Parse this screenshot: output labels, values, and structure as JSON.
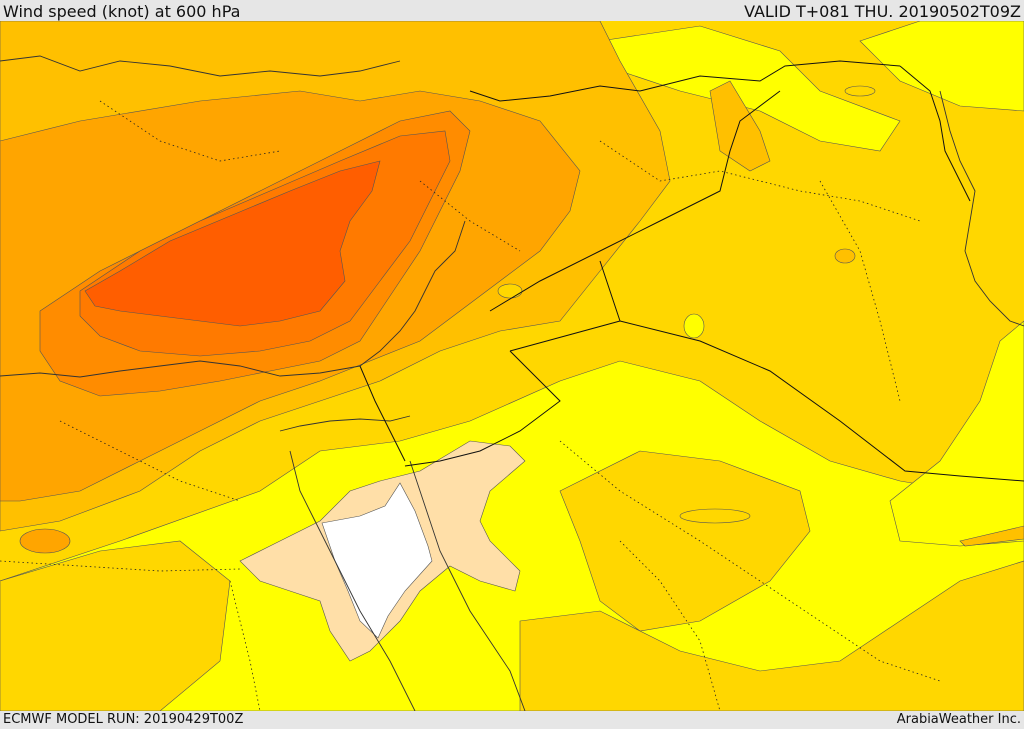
{
  "header": {
    "title": "Wind speed (knot) at 600 hPa",
    "valid": "VALID T+081 THU. 20190502T09Z"
  },
  "footer": {
    "model_run": "ECMWF MODEL RUN: 20190429T00Z",
    "credit": "ArabiaWeather Inc."
  },
  "map": {
    "field": "wind-speed-600hPa",
    "colors": {
      "white": "#ffffff",
      "beige": "#ffdfa8",
      "yellow": "#ffff00",
      "gold": "#ffd700",
      "amber": "#ffc000",
      "orange_light": "#ffa500",
      "orange": "#ff8c00",
      "orange_dark": "#ff7a00",
      "red_orange": "#ff5e00"
    }
  }
}
